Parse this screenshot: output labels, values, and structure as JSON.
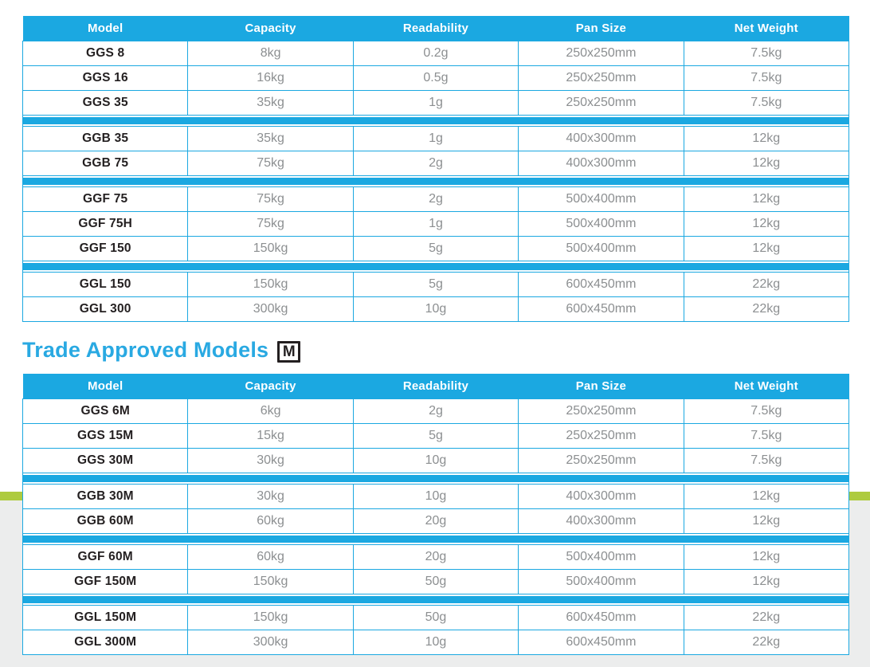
{
  "colors": {
    "accent_cyan": "#1BA8E1",
    "heading_cyan": "#29A9E2",
    "stripe_green": "#AECB3F",
    "lower_background_gray": "#ECEDED",
    "model_text": "#231F20",
    "value_text": "#8C8F91"
  },
  "columns": [
    "Model",
    "Capacity",
    "Readability",
    "Pan Size",
    "Net Weight"
  ],
  "standard_table": {
    "groups": [
      {
        "rows": [
          {
            "model": "GGS 8",
            "capacity": "8kg",
            "readability": "0.2g",
            "pan_size": "250x250mm",
            "net_weight": "7.5kg"
          },
          {
            "model": "GGS 16",
            "capacity": "16kg",
            "readability": "0.5g",
            "pan_size": "250x250mm",
            "net_weight": "7.5kg"
          },
          {
            "model": "GGS 35",
            "capacity": "35kg",
            "readability": "1g",
            "pan_size": "250x250mm",
            "net_weight": "7.5kg"
          }
        ]
      },
      {
        "rows": [
          {
            "model": "GGB 35",
            "capacity": "35kg",
            "readability": "1g",
            "pan_size": "400x300mm",
            "net_weight": "12kg"
          },
          {
            "model": "GGB 75",
            "capacity": "75kg",
            "readability": "2g",
            "pan_size": "400x300mm",
            "net_weight": "12kg"
          }
        ]
      },
      {
        "rows": [
          {
            "model": "GGF 75",
            "capacity": "75kg",
            "readability": "2g",
            "pan_size": "500x400mm",
            "net_weight": "12kg"
          },
          {
            "model": "GGF 75H",
            "capacity": "75kg",
            "readability": "1g",
            "pan_size": "500x400mm",
            "net_weight": "12kg"
          },
          {
            "model": "GGF 150",
            "capacity": "150kg",
            "readability": "5g",
            "pan_size": "500x400mm",
            "net_weight": "12kg"
          }
        ]
      },
      {
        "rows": [
          {
            "model": "GGL 150",
            "capacity": "150kg",
            "readability": "5g",
            "pan_size": "600x450mm",
            "net_weight": "22kg"
          },
          {
            "model": "GGL 300",
            "capacity": "300kg",
            "readability": "10g",
            "pan_size": "600x450mm",
            "net_weight": "22kg"
          }
        ]
      }
    ]
  },
  "trade_section": {
    "heading": "Trade Approved Models",
    "m_mark": "M"
  },
  "trade_table": {
    "groups": [
      {
        "rows": [
          {
            "model": "GGS 6M",
            "capacity": "6kg",
            "readability": "2g",
            "pan_size": "250x250mm",
            "net_weight": "7.5kg"
          },
          {
            "model": "GGS 15M",
            "capacity": "15kg",
            "readability": "5g",
            "pan_size": "250x250mm",
            "net_weight": "7.5kg"
          },
          {
            "model": "GGS 30M",
            "capacity": "30kg",
            "readability": "10g",
            "pan_size": "250x250mm",
            "net_weight": "7.5kg"
          }
        ]
      },
      {
        "rows": [
          {
            "model": "GGB 30M",
            "capacity": "30kg",
            "readability": "10g",
            "pan_size": "400x300mm",
            "net_weight": "12kg"
          },
          {
            "model": "GGB 60M",
            "capacity": "60kg",
            "readability": "20g",
            "pan_size": "400x300mm",
            "net_weight": "12kg"
          }
        ]
      },
      {
        "rows": [
          {
            "model": "GGF 60M",
            "capacity": "60kg",
            "readability": "20g",
            "pan_size": "500x400mm",
            "net_weight": "12kg"
          },
          {
            "model": "GGF 150M",
            "capacity": "150kg",
            "readability": "50g",
            "pan_size": "500x400mm",
            "net_weight": "12kg"
          }
        ]
      },
      {
        "rows": [
          {
            "model": "GGL 150M",
            "capacity": "150kg",
            "readability": "50g",
            "pan_size": "600x450mm",
            "net_weight": "22kg"
          },
          {
            "model": "GGL 300M",
            "capacity": "300kg",
            "readability": "10g",
            "pan_size": "600x450mm",
            "net_weight": "22kg"
          }
        ]
      }
    ]
  }
}
